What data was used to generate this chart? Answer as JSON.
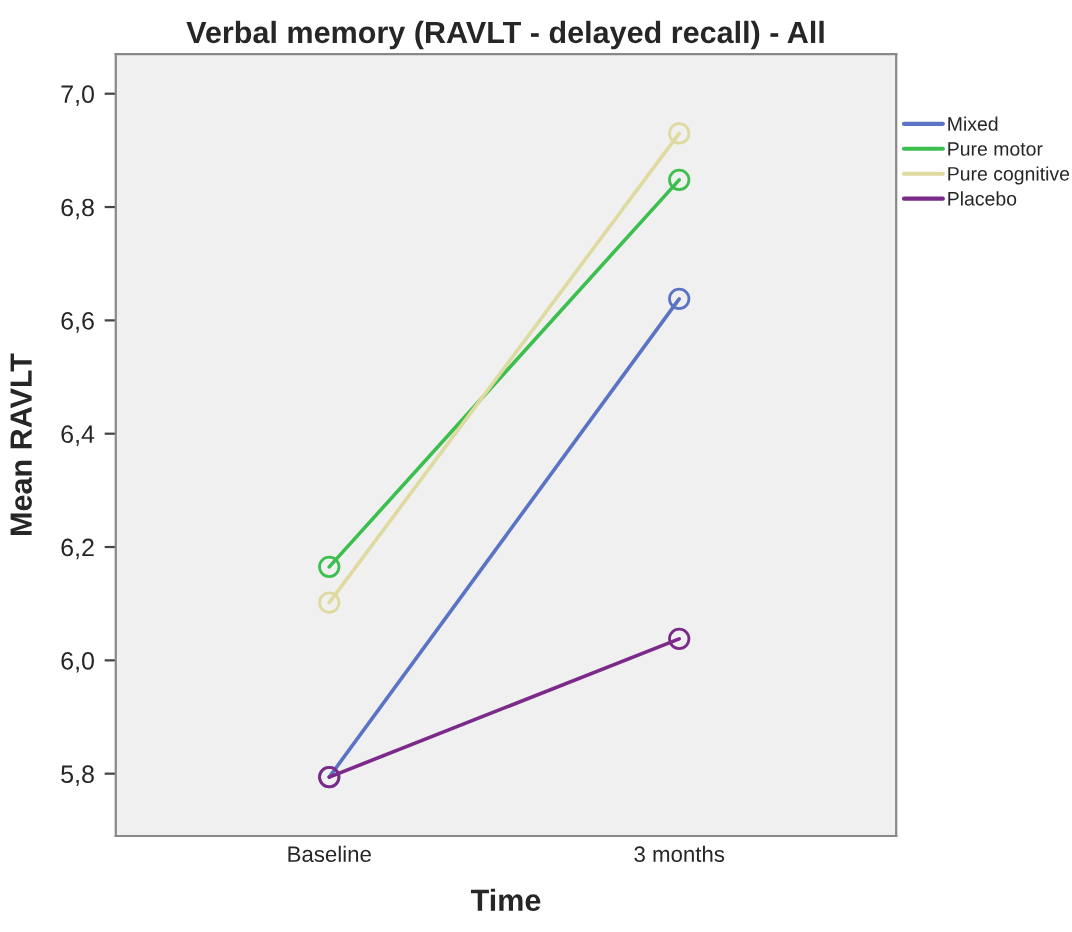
{
  "chart_data": {
    "type": "line",
    "title": "Verbal memory (RAVLT - delayed recall) - All",
    "xlabel": "Time",
    "ylabel": "Mean RAVLT",
    "categories": [
      "Baseline",
      "3 months"
    ],
    "series": [
      {
        "name": "Mixed",
        "color": "#5b73c4",
        "values": [
          5.794,
          6.638
        ]
      },
      {
        "name": "Pure motor",
        "color": "#3dbf50",
        "values": [
          6.165,
          6.848
        ]
      },
      {
        "name": "Pure cognitive",
        "color": "#dedaa0",
        "values": [
          6.102,
          6.93
        ]
      },
      {
        "name": "Placebo",
        "color": "#7b2a8a",
        "values": [
          5.794,
          6.038
        ]
      }
    ],
    "ylim": [
      5.69,
      7.07
    ],
    "yticks": [
      {
        "value": 5.8,
        "label": "5,8"
      },
      {
        "value": 6.0,
        "label": "6,0"
      },
      {
        "value": 6.2,
        "label": "6,2"
      },
      {
        "value": 6.4,
        "label": "6,4"
      },
      {
        "value": 6.6,
        "label": "6,6"
      },
      {
        "value": 6.8,
        "label": "6,8"
      },
      {
        "value": 7.0,
        "label": "7,0"
      }
    ],
    "grid": false,
    "legend": "right",
    "marker": "circle",
    "line_style": "solid"
  }
}
